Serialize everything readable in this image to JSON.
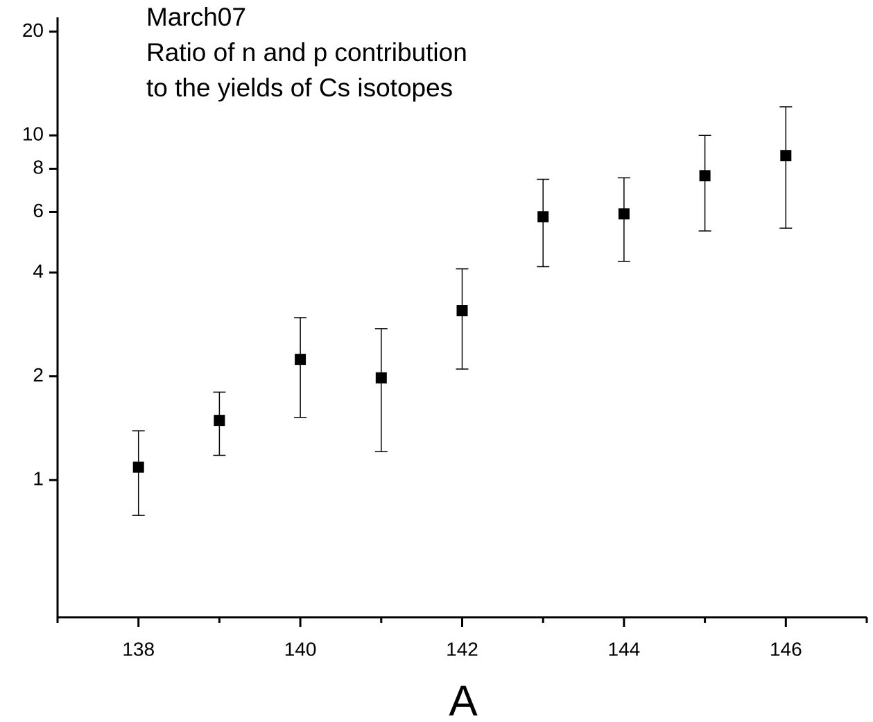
{
  "chart_data": {
    "type": "scatter",
    "annotation": [
      "March07",
      "Ratio of n and p contribution",
      "to the yields of Cs isotopes"
    ],
    "x_label": "A",
    "x": [
      138,
      139,
      140,
      141,
      142,
      143,
      144,
      145,
      146
    ],
    "series": [
      {
        "color": "#000000",
        "values": [
          1.09,
          1.49,
          2.24,
          1.98,
          3.1,
          5.81,
          5.92,
          7.64,
          8.74
        ],
        "errors": [
          0.3,
          0.31,
          0.72,
          0.77,
          1.0,
          1.65,
          1.61,
          2.36,
          3.36
        ]
      }
    ],
    "xlim": [
      137,
      147
    ],
    "xticks": [
      138,
      140,
      142,
      144,
      146
    ],
    "xminorticks": [
      137,
      139,
      141,
      143,
      145,
      147
    ],
    "ylim": [
      0.4,
      22
    ],
    "yticks": [
      1,
      2,
      4,
      6,
      8,
      10,
      20
    ],
    "log_y": true,
    "grid": false
  }
}
